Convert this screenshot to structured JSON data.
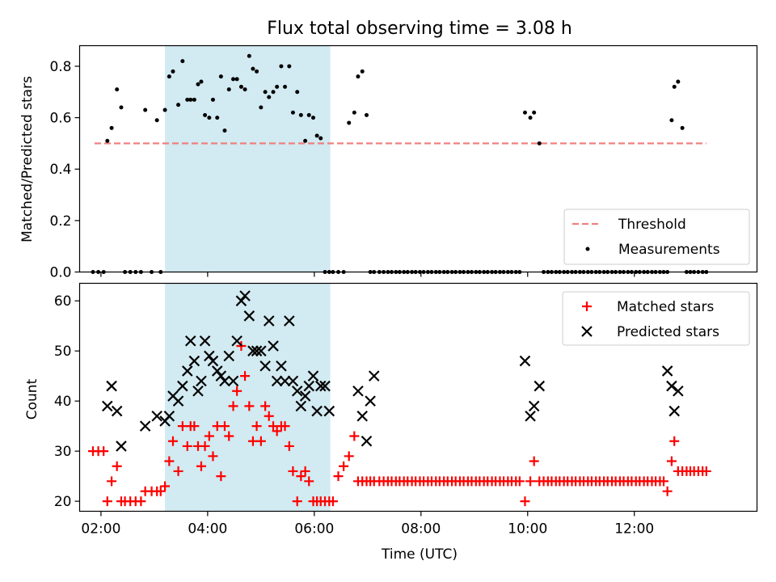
{
  "chart_data": [
    {
      "type": "scatter",
      "title": "Flux total observing time = 3.08 h",
      "xlabel": "",
      "ylabel": "Matched/Predicted stars",
      "xlim": [
        1.6,
        14.3
      ],
      "ylim": [
        0.0,
        0.88
      ],
      "x_unit": "hours (UTC)",
      "xticks": [
        2,
        4,
        6,
        8,
        10,
        12
      ],
      "xtick_labels": [
        "02:00",
        "04:00",
        "06:00",
        "08:00",
        "10:00",
        "12:00"
      ],
      "yticks": [
        0.0,
        0.2,
        0.4,
        0.6,
        0.8
      ],
      "ytick_labels": [
        "0.0",
        "0.2",
        "0.4",
        "0.6",
        "0.8"
      ],
      "shaded_span": {
        "x": [
          3.2,
          6.3
        ],
        "color": "#add8e6"
      },
      "legend": {
        "position": "lower-right",
        "entries": [
          {
            "label": "Threshold",
            "style": "dashed-line",
            "color": "#f08080"
          },
          {
            "label": "Measurements",
            "style": "dot",
            "color": "#000000"
          }
        ]
      },
      "series": [
        {
          "name": "Threshold",
          "kind": "dashed-line",
          "color": "#f08080",
          "x": [
            1.88,
            13.35
          ],
          "y": [
            0.5,
            0.5
          ]
        },
        {
          "name": "Measurements",
          "kind": "dot",
          "color": "#000000",
          "x": [
            1.85,
            1.95,
            2.05,
            2.12,
            2.2,
            2.3,
            2.38,
            2.45,
            2.55,
            2.65,
            2.75,
            2.83,
            2.95,
            3.05,
            3.12,
            3.2,
            3.28,
            3.35,
            3.45,
            3.53,
            3.62,
            3.68,
            3.75,
            3.82,
            3.88,
            3.95,
            4.03,
            4.1,
            4.18,
            4.25,
            4.32,
            4.4,
            4.48,
            4.55,
            4.63,
            4.7,
            4.78,
            4.85,
            4.92,
            5.0,
            5.08,
            5.15,
            5.23,
            5.3,
            5.38,
            5.45,
            5.53,
            5.6,
            5.68,
            5.75,
            5.83,
            5.9,
            5.98,
            6.05,
            6.12,
            6.2,
            6.28,
            6.35,
            6.45,
            6.55,
            6.65,
            6.75,
            6.82,
            6.9,
            6.98,
            7.05,
            7.12,
            7.22,
            7.3,
            7.38,
            7.45,
            7.53,
            7.6,
            7.68,
            7.75,
            7.83,
            7.9,
            7.98,
            8.05,
            8.13,
            8.2,
            8.28,
            8.35,
            8.43,
            8.5,
            8.58,
            8.65,
            8.73,
            8.8,
            8.88,
            8.95,
            9.03,
            9.1,
            9.18,
            9.25,
            9.33,
            9.4,
            9.48,
            9.55,
            9.63,
            9.7,
            9.78,
            9.85,
            9.95,
            10.05,
            10.12,
            10.22,
            10.3,
            10.38,
            10.45,
            10.53,
            10.6,
            10.68,
            10.75,
            10.83,
            10.9,
            10.98,
            11.05,
            11.13,
            11.2,
            11.28,
            11.35,
            11.43,
            11.5,
            11.58,
            11.65,
            11.73,
            11.8,
            11.88,
            11.95,
            12.03,
            12.1,
            12.18,
            12.25,
            12.33,
            12.4,
            12.48,
            12.55,
            12.62,
            12.7,
            12.75,
            12.82,
            12.9,
            12.98,
            13.05,
            13.12,
            13.2,
            13.28,
            13.35
          ],
          "y": [
            0.0,
            0.0,
            0.0,
            0.51,
            0.56,
            0.71,
            0.64,
            0.0,
            0.0,
            0.0,
            0.0,
            0.63,
            0.0,
            0.59,
            0.0,
            0.63,
            0.76,
            0.78,
            0.65,
            0.82,
            0.67,
            0.67,
            0.67,
            0.73,
            0.74,
            0.61,
            0.6,
            0.67,
            0.6,
            0.76,
            0.55,
            0.71,
            0.75,
            0.75,
            0.72,
            0.71,
            0.84,
            0.79,
            0.78,
            0.64,
            0.7,
            0.68,
            0.7,
            0.72,
            0.8,
            0.72,
            0.8,
            0.62,
            0.7,
            0.61,
            0.51,
            0.61,
            0.6,
            0.53,
            0.52,
            0.0,
            0.0,
            0.0,
            0.0,
            0.0,
            0.58,
            0.62,
            0.76,
            0.78,
            0.61,
            0.0,
            0.0,
            0.0,
            0.0,
            0.0,
            0.0,
            0.0,
            0.0,
            0.0,
            0.0,
            0.0,
            0.0,
            0.0,
            0.0,
            0.0,
            0.0,
            0.0,
            0.0,
            0.0,
            0.0,
            0.0,
            0.0,
            0.0,
            0.0,
            0.0,
            0.0,
            0.0,
            0.0,
            0.0,
            0.0,
            0.0,
            0.0,
            0.0,
            0.0,
            0.0,
            0.0,
            0.0,
            0.0,
            0.62,
            0.6,
            0.62,
            0.5,
            0.0,
            0.0,
            0.0,
            0.0,
            0.0,
            0.0,
            0.0,
            0.0,
            0.0,
            0.0,
            0.0,
            0.0,
            0.0,
            0.0,
            0.0,
            0.0,
            0.0,
            0.0,
            0.0,
            0.0,
            0.0,
            0.0,
            0.0,
            0.0,
            0.0,
            0.0,
            0.0,
            0.0,
            0.0,
            0.0,
            0.0,
            0.0,
            0.59,
            0.72,
            0.74,
            0.56,
            0.0,
            0.0,
            0.0,
            0.0,
            0.0,
            0.0
          ]
        }
      ]
    },
    {
      "type": "scatter",
      "title": "",
      "xlabel": "Time (UTC)",
      "ylabel": "Count",
      "xlim": [
        1.6,
        14.3
      ],
      "ylim": [
        18,
        63.5
      ],
      "x_unit": "hours (UTC)",
      "xticks": [
        2,
        4,
        6,
        8,
        10,
        12
      ],
      "xtick_labels": [
        "02:00",
        "04:00",
        "06:00",
        "08:00",
        "10:00",
        "12:00"
      ],
      "yticks": [
        20,
        30,
        40,
        50,
        60
      ],
      "ytick_labels": [
        "20",
        "30",
        "40",
        "50",
        "60"
      ],
      "shaded_span": {
        "x": [
          3.2,
          6.3
        ],
        "color": "#add8e6"
      },
      "legend": {
        "position": "upper-right",
        "entries": [
          {
            "label": "Matched stars",
            "style": "plus",
            "color": "#ff0000"
          },
          {
            "label": "Predicted stars",
            "style": "x",
            "color": "#000000"
          }
        ]
      },
      "series": [
        {
          "name": "Matched stars",
          "kind": "plus",
          "color": "#ff0000",
          "x": [
            1.85,
            1.95,
            2.05,
            2.12,
            2.2,
            2.3,
            2.38,
            2.45,
            2.55,
            2.65,
            2.75,
            2.83,
            2.95,
            3.05,
            3.12,
            3.2,
            3.28,
            3.35,
            3.45,
            3.53,
            3.62,
            3.68,
            3.75,
            3.82,
            3.88,
            3.95,
            4.03,
            4.1,
            4.18,
            4.25,
            4.32,
            4.4,
            4.48,
            4.55,
            4.63,
            4.7,
            4.78,
            4.85,
            4.92,
            5.0,
            5.08,
            5.15,
            5.23,
            5.3,
            5.38,
            5.45,
            5.53,
            5.6,
            5.68,
            5.75,
            5.83,
            5.9,
            5.98,
            6.05,
            6.12,
            6.2,
            6.28,
            6.35,
            6.45,
            6.55,
            6.65,
            6.75,
            6.82,
            6.9,
            6.98,
            7.05,
            7.12,
            7.22,
            7.3,
            7.38,
            7.45,
            7.53,
            7.6,
            7.68,
            7.75,
            7.83,
            7.9,
            7.98,
            8.05,
            8.13,
            8.2,
            8.28,
            8.35,
            8.43,
            8.5,
            8.58,
            8.65,
            8.73,
            8.8,
            8.88,
            8.95,
            9.03,
            9.1,
            9.18,
            9.25,
            9.33,
            9.4,
            9.48,
            9.55,
            9.63,
            9.7,
            9.78,
            9.85,
            9.95,
            10.05,
            10.12,
            10.22,
            10.3,
            10.38,
            10.45,
            10.53,
            10.6,
            10.68,
            10.75,
            10.83,
            10.9,
            10.98,
            11.05,
            11.13,
            11.2,
            11.28,
            11.35,
            11.43,
            11.5,
            11.58,
            11.65,
            11.73,
            11.8,
            11.88,
            11.95,
            12.03,
            12.1,
            12.18,
            12.25,
            12.33,
            12.4,
            12.48,
            12.55,
            12.62,
            12.7,
            12.75,
            12.82,
            12.9,
            12.98,
            13.05,
            13.12,
            13.2,
            13.28,
            13.35
          ],
          "y": [
            30,
            30,
            30,
            20,
            24,
            27,
            20,
            20,
            20,
            20,
            20,
            22,
            22,
            22,
            22,
            23,
            28,
            32,
            26,
            35,
            31,
            35,
            35,
            31,
            27,
            31,
            33,
            29,
            35,
            25,
            35,
            33,
            39,
            42,
            51,
            45,
            39,
            32,
            35,
            32,
            39,
            37,
            35,
            34,
            35,
            35,
            31,
            26,
            20,
            25,
            26,
            24,
            20,
            20,
            20,
            20,
            20,
            20,
            25,
            27,
            29,
            33,
            24,
            24,
            24,
            24,
            24,
            24,
            24,
            24,
            24,
            24,
            24,
            24,
            24,
            24,
            24,
            24,
            24,
            24,
            24,
            24,
            24,
            24,
            24,
            24,
            24,
            24,
            24,
            24,
            24,
            24,
            24,
            24,
            24,
            24,
            24,
            24,
            24,
            24,
            24,
            24,
            24,
            20,
            24,
            28,
            24,
            24,
            24,
            24,
            24,
            24,
            24,
            24,
            24,
            24,
            24,
            24,
            24,
            24,
            24,
            24,
            24,
            24,
            24,
            24,
            24,
            24,
            24,
            24,
            24,
            24,
            24,
            24,
            24,
            24,
            24,
            24,
            22,
            28,
            32,
            26,
            26,
            26,
            26,
            26,
            26,
            26,
            26
          ]
        },
        {
          "name": "Predicted stars",
          "kind": "x",
          "color": "#000000",
          "x": [
            2.12,
            2.2,
            2.3,
            2.38,
            2.83,
            3.05,
            3.2,
            3.28,
            3.35,
            3.45,
            3.53,
            3.62,
            3.68,
            3.75,
            3.82,
            3.88,
            3.95,
            4.03,
            4.1,
            4.18,
            4.25,
            4.32,
            4.4,
            4.48,
            4.55,
            4.63,
            4.7,
            4.78,
            4.85,
            4.92,
            5.0,
            5.08,
            5.15,
            5.23,
            5.3,
            5.38,
            5.45,
            5.53,
            5.6,
            5.68,
            5.75,
            5.83,
            5.9,
            5.98,
            6.05,
            6.12,
            6.2,
            6.28,
            6.82,
            6.9,
            6.98,
            7.05,
            7.12,
            9.95,
            10.05,
            10.12,
            10.22,
            12.62,
            12.7,
            12.75,
            12.82
          ],
          "y": [
            39,
            43,
            38,
            31,
            35,
            37,
            36,
            37,
            41,
            40,
            43,
            46,
            52,
            48,
            42,
            44,
            52,
            49,
            48,
            46,
            45,
            44,
            49,
            44,
            52,
            60,
            61,
            57,
            50,
            50,
            50,
            47,
            56,
            51,
            44,
            47,
            44,
            56,
            44,
            42,
            39,
            41,
            43,
            45,
            38,
            43,
            43,
            38,
            42,
            37,
            32,
            40,
            45,
            48,
            37,
            39,
            43,
            46,
            43,
            38,
            42
          ]
        }
      ]
    }
  ]
}
